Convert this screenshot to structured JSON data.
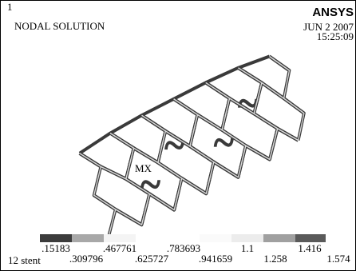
{
  "frame_number": "1",
  "title": "NODAL SOLUTION",
  "logo": "ANSYS",
  "date": "JUN 2 2007",
  "time": "15:25:09",
  "marker": "MX",
  "legend": {
    "top_labels": [
      ".15183",
      ".467761",
      ".783693",
      "1.1",
      "1.416"
    ],
    "bottom_labels": [
      ".309796",
      ".625727",
      ".941659",
      "1.258",
      "1.574"
    ]
  },
  "caption": "12 stent"
}
